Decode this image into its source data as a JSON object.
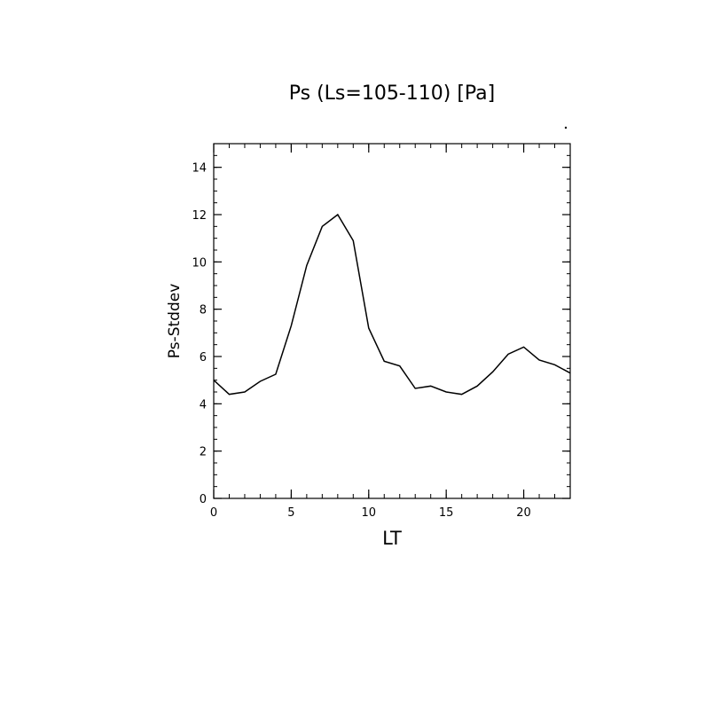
{
  "chart_data": {
    "type": "line",
    "title": "Ps (Ls=105-110) [Pa]",
    "xlabel": "LT",
    "ylabel": "Ps-Stddev",
    "xlim": [
      0,
      23
    ],
    "ylim": [
      0,
      15
    ],
    "x_ticks": [
      0,
      5,
      10,
      15,
      20
    ],
    "y_ticks": [
      0,
      2,
      4,
      6,
      8,
      10,
      12,
      14
    ],
    "grid": false,
    "legend": "none",
    "series": [
      {
        "color": "#000000",
        "x": [
          0,
          1,
          2,
          3,
          4,
          5,
          6,
          7,
          8,
          9,
          10,
          11,
          12,
          13,
          14,
          15,
          16,
          17,
          18,
          19,
          20,
          21,
          22,
          23
        ],
        "y": [
          5.0,
          4.4,
          4.5,
          4.95,
          5.25,
          7.3,
          9.85,
          11.5,
          12.0,
          10.9,
          7.2,
          5.8,
          5.6,
          4.65,
          4.75,
          4.5,
          4.4,
          4.75,
          5.35,
          6.1,
          6.4,
          5.85,
          5.65,
          5.3
        ]
      }
    ]
  }
}
